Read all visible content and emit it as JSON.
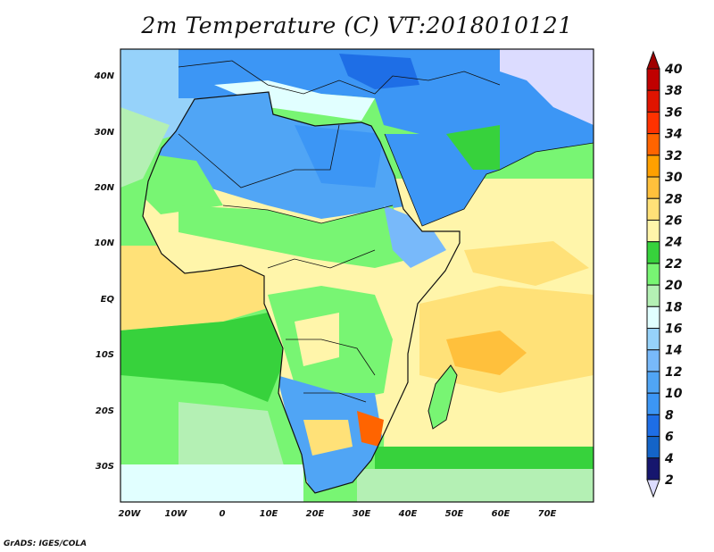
{
  "title": "2m Temperature (C) VT:2018010121",
  "credit": "GrADS: IGES/COLA",
  "map": {
    "variable": "2m Temperature",
    "units": "C",
    "valid_time": "2018010121",
    "lat_labels": [
      "40N",
      "30N",
      "20N",
      "10N",
      "EQ",
      "10S",
      "20S",
      "30S"
    ],
    "lon_labels": [
      "20W",
      "10W",
      "0",
      "10E",
      "20E",
      "30E",
      "40E",
      "50E",
      "60E",
      "70E"
    ]
  },
  "colorbar": {
    "labels": [
      "40",
      "38",
      "36",
      "34",
      "32",
      "30",
      "28",
      "26",
      "24",
      "22",
      "20",
      "18",
      "16",
      "14",
      "12",
      "10",
      "8",
      "6",
      "4",
      "2"
    ],
    "above_color": "#a00000",
    "below_color": "#dcdcff",
    "colors_top_to_bottom": [
      "#c00000",
      "#e01400",
      "#ff3200",
      "#ff6400",
      "#ffa000",
      "#ffc03c",
      "#ffe178",
      "#fff5aa",
      "#37d23c",
      "#78f573",
      "#b4f0b4",
      "#e1ffff",
      "#96d2fa",
      "#78b9fa",
      "#50a5f5",
      "#3c96f5",
      "#1e6ee6",
      "#1464c8",
      "#16166e"
    ]
  }
}
